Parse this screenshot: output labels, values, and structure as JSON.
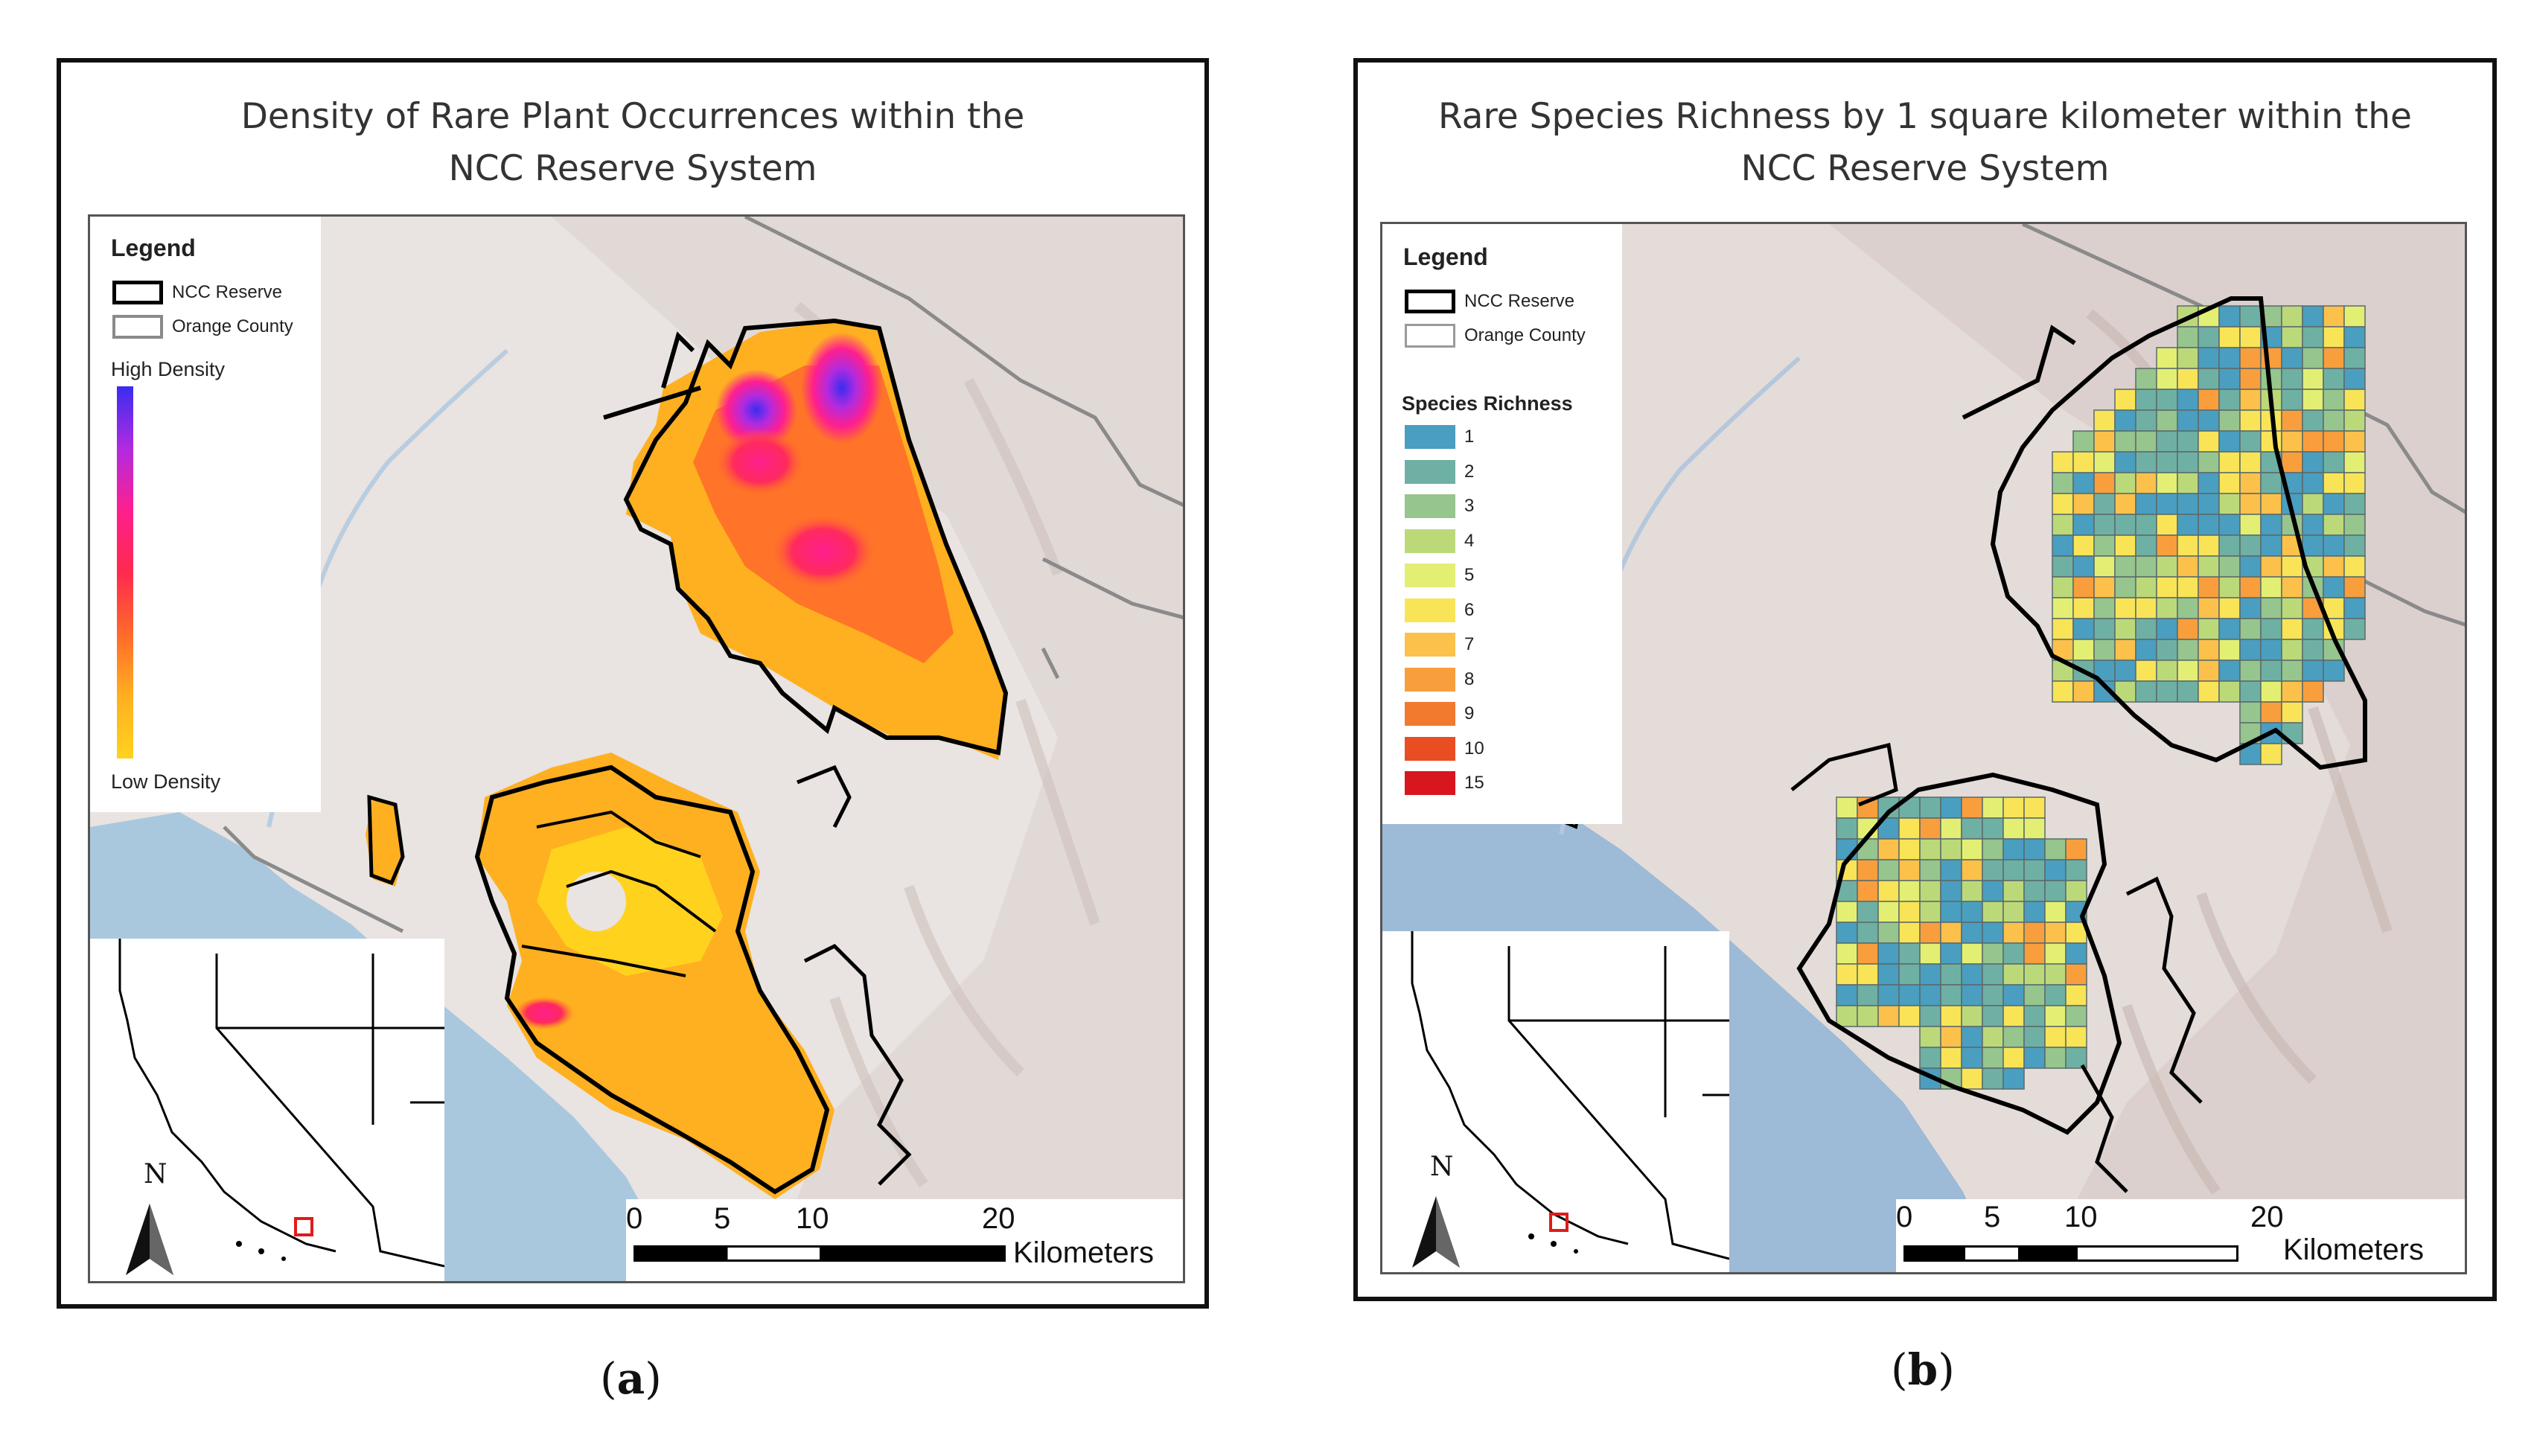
{
  "panels": [
    {
      "title_line1": "Density of Rare Plant Occurrences within the",
      "title_line2": "NCC Reserve System",
      "legend": {
        "title": "Legend",
        "reserve": "NCC Reserve",
        "county": "Orange County",
        "high": "High Density",
        "low": "Low Density",
        "ramp_colors": [
          "#3a2cf0",
          "#b02be0",
          "#ff1f8e",
          "#ff2a4e",
          "#ff6a2a",
          "#ffb020",
          "#ffd21e"
        ]
      },
      "north": "N",
      "scale": {
        "ticks": [
          "0",
          "5",
          "10",
          "20"
        ],
        "unit": "Kilometers"
      },
      "caption": "a"
    },
    {
      "title_line1": "Rare Species Richness by 1 square kilometer within the",
      "title_line2": "NCC Reserve System",
      "legend": {
        "title": "Legend",
        "reserve": "NCC Reserve",
        "county": "Orange County",
        "richness_title": "Species Richness",
        "classes": [
          {
            "label": "1",
            "color": "#4a9ec0"
          },
          {
            "label": "2",
            "color": "#6fb0a4"
          },
          {
            "label": "3",
            "color": "#96c58e"
          },
          {
            "label": "4",
            "color": "#bcd97a"
          },
          {
            "label": "5",
            "color": "#e3ef73"
          },
          {
            "label": "6",
            "color": "#f9e457"
          },
          {
            "label": "7",
            "color": "#fbc14a"
          },
          {
            "label": "8",
            "color": "#f99e3c"
          },
          {
            "label": "9",
            "color": "#f27a2e"
          },
          {
            "label": "10",
            "color": "#e84e22"
          },
          {
            "label": "15",
            "color": "#d8161e"
          }
        ]
      },
      "north": "N",
      "scale": {
        "ticks": [
          "0",
          "5",
          "10",
          "20"
        ],
        "unit": "Kilometers"
      },
      "caption": "b"
    }
  ],
  "colors": {
    "ocean": "#a9c8de",
    "land": "#e9e3e1",
    "inset_marker": "#e01b1b"
  }
}
